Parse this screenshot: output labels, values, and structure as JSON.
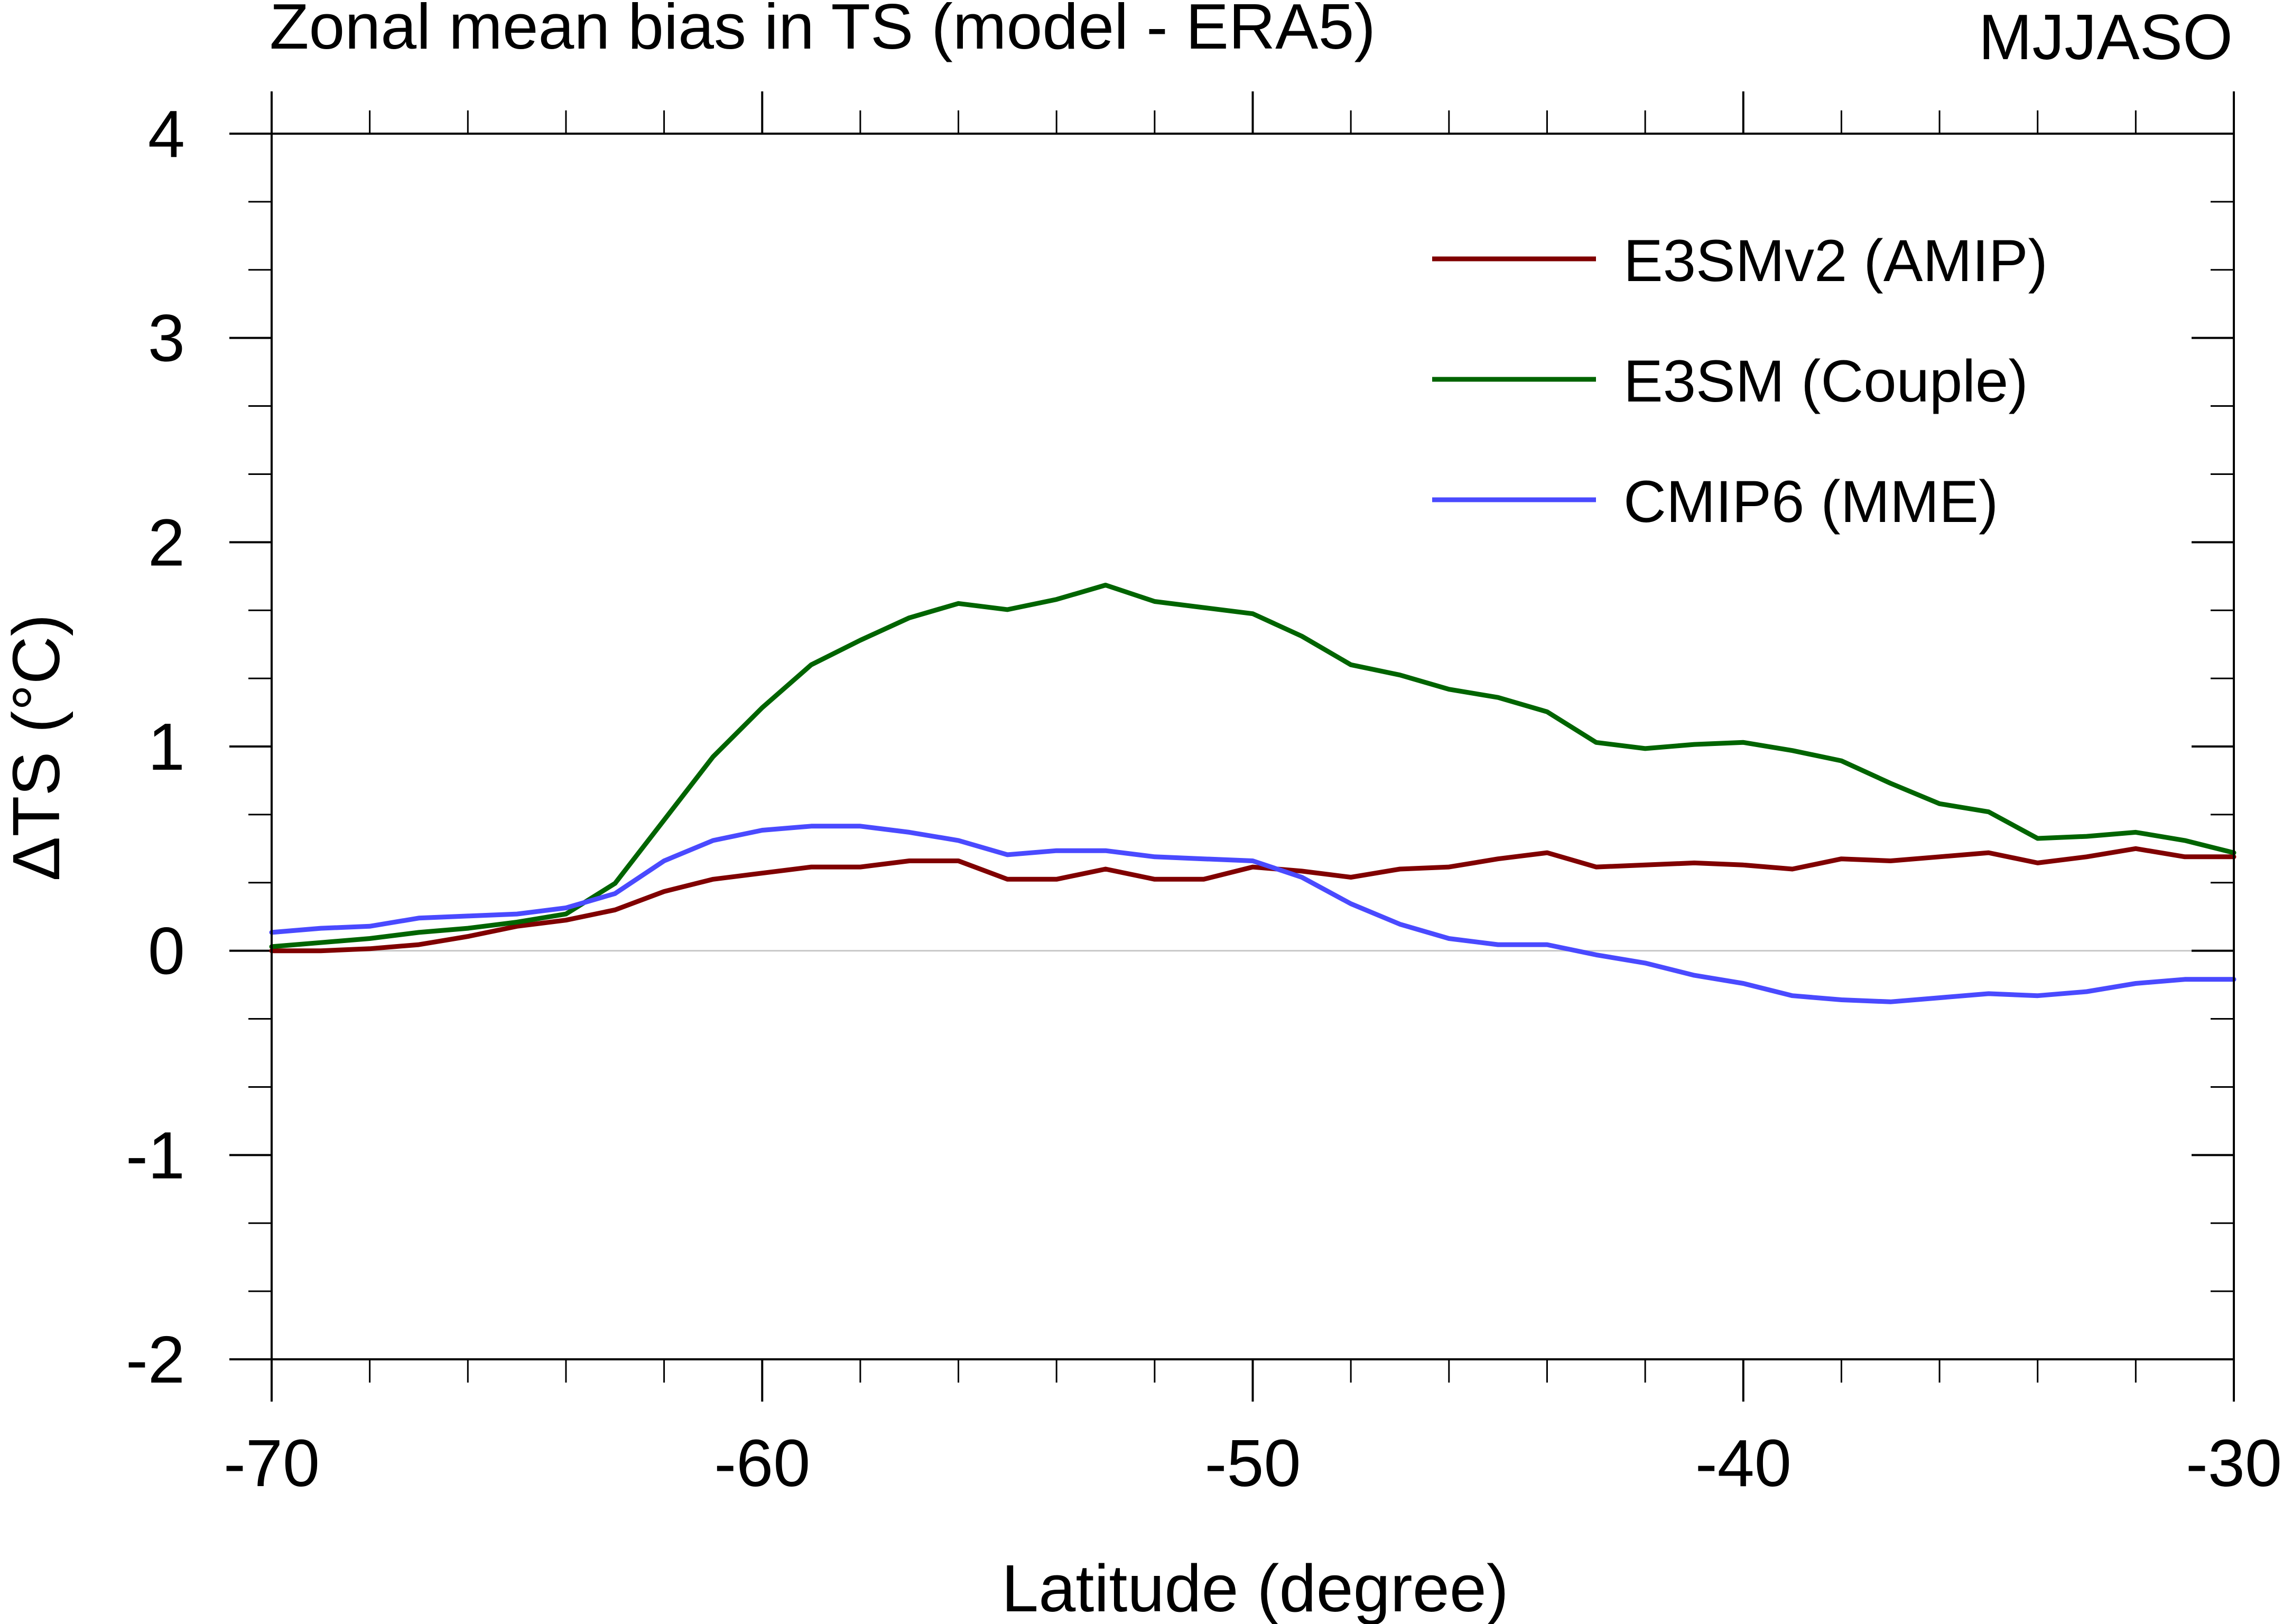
{
  "chart_data": {
    "type": "line",
    "title": "Zonal mean bias in TS (model - ERA5)",
    "season_label": "MJJASO",
    "xlabel": "Latitude (degree)",
    "ylabel": "ΔTS (°C)",
    "xlim": [
      -70,
      -30
    ],
    "ylim": [
      -2,
      4
    ],
    "xticks": [
      -70,
      -60,
      -50,
      -40,
      -30
    ],
    "yticks": [
      -2,
      -1,
      0,
      1,
      2,
      3,
      4
    ],
    "x_minor_step": 1,
    "y_minor_step": 0.333,
    "zero_line": true,
    "legend_position": "top-right",
    "x": [
      -70,
      -69,
      -68,
      -67,
      -66,
      -65,
      -64,
      -63,
      -62,
      -61,
      -60,
      -59,
      -58,
      -57,
      -56,
      -55,
      -54,
      -53,
      -52,
      -51,
      -50,
      -49,
      -48,
      -47,
      -46,
      -45,
      -44,
      -43,
      -42,
      -41,
      -40,
      -39,
      -38,
      -37,
      -36,
      -35,
      -34,
      -33,
      -32,
      -31,
      -30
    ],
    "series": [
      {
        "name": "E3SMv2 (AMIP)",
        "color": "#800000",
        "values": [
          0.0,
          0.0,
          0.01,
          0.03,
          0.07,
          0.12,
          0.15,
          0.2,
          0.29,
          0.35,
          0.38,
          0.41,
          0.41,
          0.44,
          0.44,
          0.35,
          0.35,
          0.4,
          0.35,
          0.35,
          0.41,
          0.39,
          0.36,
          0.4,
          0.41,
          0.45,
          0.48,
          0.41,
          0.42,
          0.43,
          0.42,
          0.4,
          0.45,
          0.44,
          0.46,
          0.48,
          0.43,
          0.46,
          0.5,
          0.46,
          0.46
        ]
      },
      {
        "name": "E3SM (Couple)",
        "color": "#006400",
        "values": [
          0.02,
          0.04,
          0.06,
          0.09,
          0.11,
          0.14,
          0.18,
          0.33,
          0.64,
          0.95,
          1.19,
          1.4,
          1.52,
          1.63,
          1.7,
          1.67,
          1.72,
          1.79,
          1.71,
          1.68,
          1.65,
          1.54,
          1.4,
          1.35,
          1.28,
          1.24,
          1.17,
          1.02,
          0.99,
          1.01,
          1.02,
          0.98,
          0.93,
          0.82,
          0.72,
          0.68,
          0.55,
          0.56,
          0.58,
          0.54,
          0.48
        ]
      },
      {
        "name": "CMIP6 (MME)",
        "color": "#4a4aff",
        "values": [
          0.09,
          0.11,
          0.12,
          0.16,
          0.17,
          0.18,
          0.21,
          0.28,
          0.44,
          0.54,
          0.59,
          0.61,
          0.61,
          0.58,
          0.54,
          0.47,
          0.49,
          0.49,
          0.46,
          0.45,
          0.44,
          0.36,
          0.23,
          0.13,
          0.06,
          0.03,
          0.03,
          -0.02,
          -0.06,
          -0.12,
          -0.16,
          -0.22,
          -0.24,
          -0.25,
          -0.23,
          -0.21,
          -0.22,
          -0.2,
          -0.16,
          -0.14,
          -0.14
        ]
      }
    ]
  }
}
